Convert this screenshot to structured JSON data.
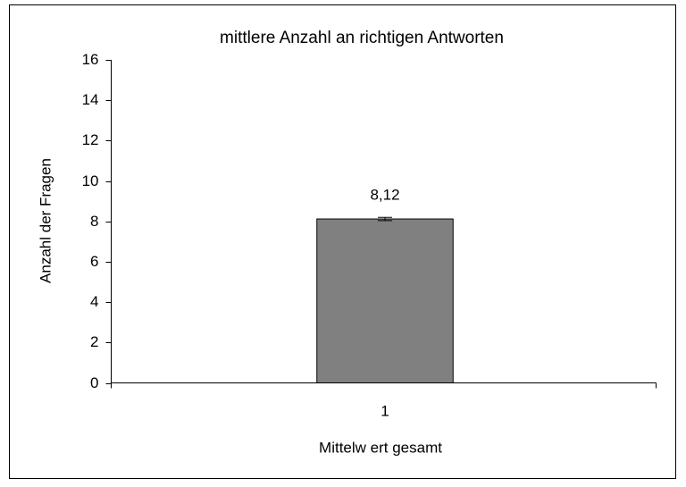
{
  "chart_data": {
    "type": "bar",
    "title": "mittlere Anzahl an richtigen Antworten",
    "y_label": "Anzahl der Fragen",
    "x_label": "Mittelw ert gesamt",
    "categories": [
      "1"
    ],
    "values": [
      8.12
    ],
    "value_labels": [
      "8,12"
    ],
    "errors": [
      0.08
    ],
    "color": "#808080",
    "ylim": [
      0,
      16
    ],
    "yticks": [
      0,
      2,
      4,
      6,
      8,
      10,
      12,
      14,
      16
    ],
    "grid": false
  }
}
